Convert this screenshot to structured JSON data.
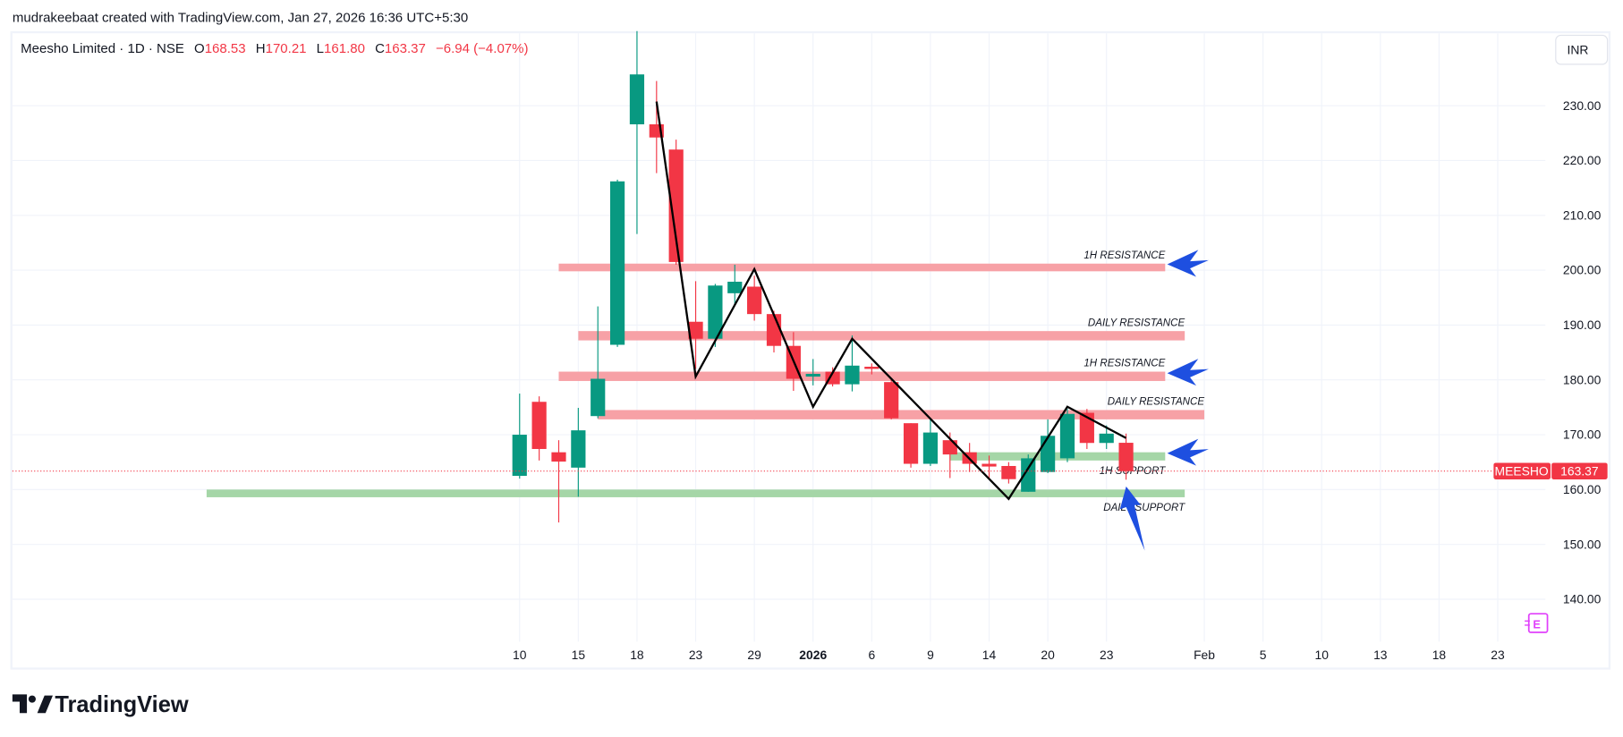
{
  "watermark": "mudrakeebaat created with TradingView.com, Jan 27, 2026 16:36 UTC+5:30",
  "legend": {
    "symbol": "Meesho Limited · 1D · NSE",
    "o_label": "O",
    "o": "168.53",
    "h_label": "H",
    "h": "170.21",
    "l_label": "L",
    "l": "161.80",
    "c_label": "C",
    "c": "163.37",
    "change": "−6.94 (−4.07%)"
  },
  "currency_button": "INR",
  "earnings_icon_label": "E",
  "brand": "TradingView",
  "colors": {
    "up": "#089981",
    "down": "#f23645",
    "resistance_zone": "#f7a1a6",
    "support_zone": "#a5d6a7",
    "arrow": "#1e4fe0"
  },
  "chart_data": {
    "type": "candlestick",
    "ylim": [
      133,
      243
    ],
    "y_ticks": [
      "230.00",
      "220.00",
      "210.00",
      "200.00",
      "190.00",
      "180.00",
      "170.00",
      "160.00",
      "150.00",
      "140.00"
    ],
    "x_ticks": [
      {
        "label": "10",
        "index": 0
      },
      {
        "label": "15",
        "index": 3
      },
      {
        "label": "18",
        "index": 6
      },
      {
        "label": "23",
        "index": 9
      },
      {
        "label": "29",
        "index": 12
      },
      {
        "label": "2026",
        "index": 15,
        "bold": true
      },
      {
        "label": "6",
        "index": 18
      },
      {
        "label": "9",
        "index": 21
      },
      {
        "label": "14",
        "index": 24
      },
      {
        "label": "20",
        "index": 27
      },
      {
        "label": "23",
        "index": 30
      },
      {
        "label": "Feb",
        "index": 35
      },
      {
        "label": "5",
        "index": 38
      },
      {
        "label": "10",
        "index": 41
      },
      {
        "label": "13",
        "index": 44
      },
      {
        "label": "18",
        "index": 47
      },
      {
        "label": "23",
        "index": 50
      }
    ],
    "candles": [
      [
        162.5,
        177.5,
        162.0,
        170.0
      ],
      [
        176.0,
        177.0,
        165.3,
        167.4
      ],
      [
        166.8,
        169.0,
        154.0,
        165.1
      ],
      [
        164.0,
        174.9,
        158.7,
        170.8
      ],
      [
        173.4,
        193.4,
        173.0,
        180.2
      ],
      [
        186.4,
        216.5,
        186.0,
        216.2
      ],
      [
        226.6,
        243.6,
        206.6,
        235.7
      ],
      [
        226.6,
        234.5,
        217.7,
        224.2
      ],
      [
        222.0,
        223.8,
        201.0,
        201.5
      ],
      [
        190.6,
        198.0,
        182.0,
        187.5
      ],
      [
        187.5,
        197.5,
        186.0,
        197.2
      ],
      [
        195.8,
        201.0,
        193.6,
        197.9
      ],
      [
        197.0,
        199.0,
        190.8,
        192.0
      ],
      [
        192.0,
        192.6,
        185.0,
        186.2
      ],
      [
        186.2,
        188.7,
        178.0,
        180.2
      ],
      [
        180.6,
        183.8,
        179.0,
        181.1
      ],
      [
        181.5,
        182.3,
        178.8,
        179.2
      ],
      [
        179.2,
        188.1,
        177.9,
        182.6
      ],
      [
        182.4,
        183.0,
        181.0,
        182.0
      ],
      [
        179.6,
        180.0,
        172.8,
        173.0
      ],
      [
        172.1,
        172.1,
        164.0,
        164.7
      ],
      [
        164.7,
        173.0,
        164.3,
        170.4
      ],
      [
        169.0,
        170.4,
        162.1,
        166.4
      ],
      [
        166.8,
        168.5,
        163.2,
        164.7
      ],
      [
        164.7,
        166.2,
        162.1,
        164.2
      ],
      [
        164.3,
        165.0,
        161.1,
        161.9
      ],
      [
        159.6,
        166.4,
        159.6,
        165.7
      ],
      [
        163.2,
        172.8,
        163.0,
        169.8
      ],
      [
        165.7,
        174.7,
        165.0,
        173.8
      ],
      [
        174.0,
        174.7,
        167.4,
        168.5
      ],
      [
        168.5,
        171.7,
        167.4,
        170.2
      ],
      [
        168.53,
        170.21,
        161.8,
        163.37
      ]
    ],
    "last_price": 163.37,
    "last_price_label": "163.37",
    "symbol_tag": "MEESHO",
    "zones": [
      {
        "label": "1H RESISTANCE",
        "type": "resistance",
        "low": 199.8,
        "high": 201.2,
        "from": 2,
        "to": 33,
        "label_pos": "above",
        "arrow": "left"
      },
      {
        "label": "DAILY RESISTANCE",
        "type": "resistance",
        "low": 187.2,
        "high": 188.9,
        "from": 3,
        "to": 34,
        "label_pos": "above"
      },
      {
        "label": "1H RESISTANCE",
        "type": "resistance",
        "low": 179.8,
        "high": 181.5,
        "from": 2,
        "to": 33,
        "label_pos": "above",
        "arrow": "left"
      },
      {
        "label": "DAILY RESISTANCE",
        "type": "resistance",
        "low": 172.8,
        "high": 174.5,
        "from": 4,
        "to": 35,
        "label_pos": "above"
      },
      {
        "label": "1H SUPPORT",
        "type": "support",
        "low": 165.3,
        "high": 166.8,
        "from": 22,
        "to": 33,
        "label_pos": "below",
        "arrow": "left"
      },
      {
        "label": "DAILY SUPPORT",
        "type": "support",
        "low": 158.6,
        "high": 160.0,
        "from": -16,
        "to": 34,
        "label_pos": "below",
        "arrow": "up"
      }
    ],
    "zigzag": [
      [
        7,
        230.75
      ],
      [
        9,
        180.6
      ],
      [
        12,
        200.2
      ],
      [
        15,
        175.1
      ],
      [
        17,
        187.5
      ],
      [
        25,
        158.3
      ],
      [
        28,
        175.1
      ],
      [
        31,
        169.4
      ]
    ]
  }
}
